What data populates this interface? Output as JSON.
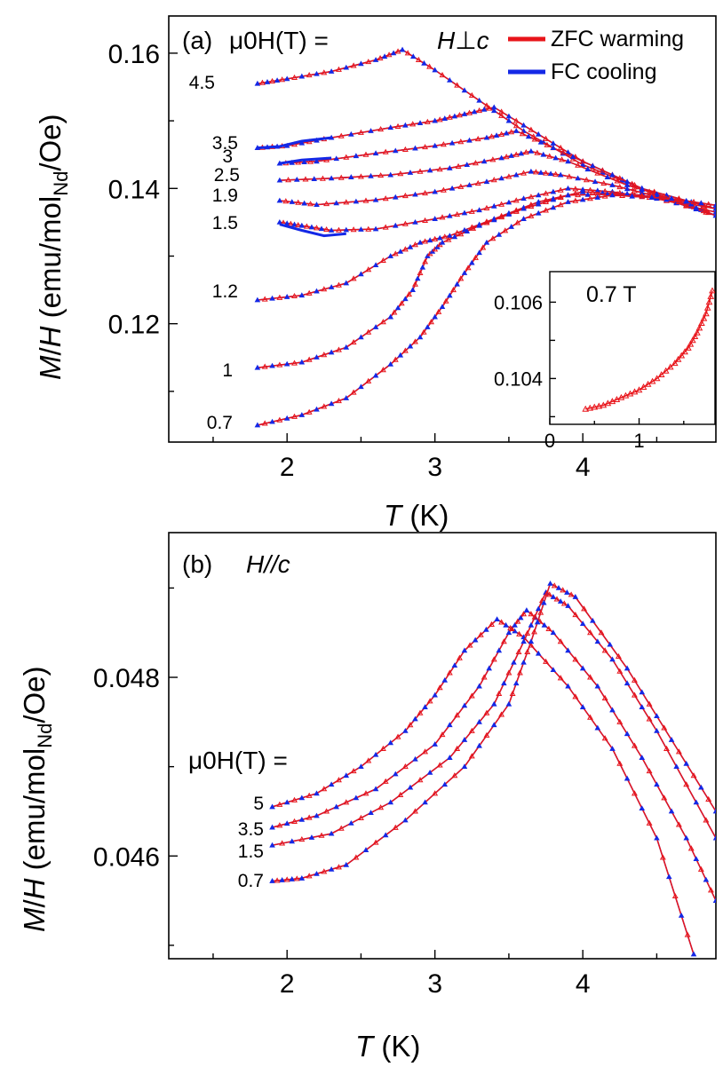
{
  "chart_data": [
    {
      "panel": "a",
      "type": "line",
      "label": "(a)",
      "field_label": "μ0H(T) =",
      "direction_label": "H⊥c",
      "xlabel": "T (K)",
      "ylabel": "M/H (emu/molNd/Oe)",
      "xlim": [
        1.2,
        4.9
      ],
      "ylim": [
        0.1025,
        0.1655
      ],
      "xticks": [
        2,
        3,
        4
      ],
      "xtick_labels": [
        "2",
        "3",
        "4"
      ],
      "yticks": [
        0.12,
        0.14,
        0.16
      ],
      "ytick_labels": [
        "0.12",
        "0.14",
        "0.16"
      ],
      "legend": [
        {
          "name": "ZFC warming",
          "color": "#e8141a"
        },
        {
          "name": "FC cooling",
          "color": "#1428e6"
        }
      ],
      "legend_position": "top-right",
      "series": [
        {
          "field": "4.5",
          "label": "4.5",
          "points": [
            [
              1.8,
              0.1555
            ],
            [
              2.0,
              0.1562
            ],
            [
              2.3,
              0.1573
            ],
            [
              2.6,
              0.159
            ],
            [
              2.78,
              0.1605
            ],
            [
              3.0,
              0.1575
            ],
            [
              3.3,
              0.153
            ],
            [
              3.6,
              0.1485
            ],
            [
              4.0,
              0.1435
            ],
            [
              4.4,
              0.14
            ],
            [
              4.9,
              0.137
            ]
          ]
        },
        {
          "field": "3.5",
          "label": "3.5",
          "points": [
            [
              1.8,
              0.146
            ],
            [
              2.0,
              0.1463
            ],
            [
              2.3,
              0.1475
            ],
            [
              2.7,
              0.149
            ],
            [
              3.0,
              0.15
            ],
            [
              3.2,
              0.151
            ],
            [
              3.4,
              0.152
            ],
            [
              3.7,
              0.148
            ],
            [
              4.0,
              0.144
            ],
            [
              4.4,
              0.14
            ],
            [
              4.9,
              0.136
            ]
          ],
          "fc_points": [
            [
              1.8,
              0.146
            ],
            [
              1.95,
              0.1462
            ],
            [
              2.1,
              0.147
            ],
            [
              2.3,
              0.1475
            ]
          ]
        },
        {
          "field": "3",
          "label": "3",
          "points": [
            [
              1.95,
              0.1437
            ],
            [
              2.2,
              0.144
            ],
            [
              2.6,
              0.1452
            ],
            [
              3.0,
              0.1463
            ],
            [
              3.35,
              0.1475
            ],
            [
              3.55,
              0.1485
            ],
            [
              3.8,
              0.146
            ],
            [
              4.2,
              0.142
            ],
            [
              4.5,
              0.139
            ],
            [
              4.9,
              0.136
            ]
          ],
          "fc_points": [
            [
              1.95,
              0.1437
            ],
            [
              2.1,
              0.1442
            ],
            [
              2.3,
              0.1445
            ]
          ]
        },
        {
          "field": "2.5",
          "label": "2.5",
          "points": [
            [
              1.95,
              0.1412
            ],
            [
              2.3,
              0.1415
            ],
            [
              2.7,
              0.142
            ],
            [
              3.1,
              0.143
            ],
            [
              3.45,
              0.1445
            ],
            [
              3.65,
              0.1455
            ],
            [
              3.9,
              0.144
            ],
            [
              4.3,
              0.1405
            ],
            [
              4.6,
              0.1385
            ],
            [
              4.9,
              0.136
            ]
          ]
        },
        {
          "field": "1.9",
          "label": "1.9",
          "points": [
            [
              1.95,
              0.1382
            ],
            [
              2.2,
              0.1376
            ],
            [
              2.6,
              0.1383
            ],
            [
              3.0,
              0.1395
            ],
            [
              3.35,
              0.141
            ],
            [
              3.65,
              0.1425
            ],
            [
              3.85,
              0.142
            ],
            [
              4.2,
              0.1405
            ],
            [
              4.5,
              0.1388
            ],
            [
              4.9,
              0.136
            ]
          ]
        },
        {
          "field": "1.5",
          "label": "1.5",
          "points": [
            [
              1.95,
              0.135
            ],
            [
              2.1,
              0.1345
            ],
            [
              2.3,
              0.1338
            ],
            [
              2.6,
              0.134
            ],
            [
              3.0,
              0.1355
            ],
            [
              3.3,
              0.1368
            ],
            [
              3.6,
              0.1385
            ],
            [
              3.9,
              0.14
            ],
            [
              4.2,
              0.1395
            ],
            [
              4.5,
              0.1385
            ],
            [
              4.9,
              0.1365
            ]
          ],
          "fc_points": [
            [
              1.95,
              0.1347
            ],
            [
              2.1,
              0.1338
            ],
            [
              2.25,
              0.133
            ],
            [
              2.4,
              0.1333
            ]
          ]
        },
        {
          "field": "1.2",
          "label": "1.2",
          "points": [
            [
              1.8,
              0.1235
            ],
            [
              2.1,
              0.1242
            ],
            [
              2.4,
              0.126
            ],
            [
              2.7,
              0.13
            ],
            [
              2.9,
              0.132
            ],
            [
              3.1,
              0.133
            ],
            [
              3.4,
              0.1355
            ],
            [
              3.7,
              0.138
            ],
            [
              4.0,
              0.1395
            ],
            [
              4.4,
              0.139
            ],
            [
              4.9,
              0.137
            ]
          ]
        },
        {
          "field": "1",
          "label": "1",
          "points": [
            [
              1.8,
              0.1135
            ],
            [
              2.1,
              0.1143
            ],
            [
              2.4,
              0.1165
            ],
            [
              2.7,
              0.121
            ],
            [
              2.85,
              0.125
            ],
            [
              2.95,
              0.13
            ],
            [
              3.05,
              0.132
            ],
            [
              3.3,
              0.1345
            ],
            [
              3.6,
              0.137
            ],
            [
              3.9,
              0.139
            ],
            [
              4.3,
              0.1392
            ],
            [
              4.9,
              0.1375
            ]
          ]
        },
        {
          "field": "0.7",
          "label": "0.7",
          "points": [
            [
              1.8,
              0.105
            ],
            [
              2.1,
              0.1065
            ],
            [
              2.4,
              0.109
            ],
            [
              2.7,
              0.114
            ],
            [
              2.9,
              0.118
            ],
            [
              3.05,
              0.1225
            ],
            [
              3.2,
              0.1275
            ],
            [
              3.35,
              0.132
            ],
            [
              3.6,
              0.1355
            ],
            [
              3.9,
              0.138
            ],
            [
              4.2,
              0.139
            ],
            [
              4.6,
              0.1385
            ],
            [
              4.9,
              0.1375
            ]
          ]
        }
      ],
      "inset": {
        "label": "0.7 T",
        "xlim": [
          0,
          1.85
        ],
        "ylim": [
          0.1028,
          0.1068
        ],
        "xticks": [
          0,
          1
        ],
        "xtick_labels": [
          "0",
          "1"
        ],
        "yticks": [
          0.104,
          0.106
        ],
        "ytick_labels": [
          "0.104",
          "0.106"
        ],
        "points": [
          [
            0.4,
            0.1032
          ],
          [
            0.6,
            0.1033
          ],
          [
            0.8,
            0.1035
          ],
          [
            1.0,
            0.1037
          ],
          [
            1.2,
            0.104
          ],
          [
            1.4,
            0.1044
          ],
          [
            1.55,
            0.1048
          ],
          [
            1.65,
            0.1052
          ],
          [
            1.75,
            0.1057
          ],
          [
            1.82,
            0.1063
          ]
        ]
      }
    },
    {
      "panel": "b",
      "type": "line",
      "label": "(b)",
      "field_label": "μ0H(T) =",
      "direction_label": "H//c",
      "xlabel": "T (K)",
      "ylabel": "M/H (emu/molNd/Oe)",
      "xlim": [
        1.2,
        4.9
      ],
      "ylim": [
        0.04485,
        0.04962
      ],
      "xticks": [
        2,
        3,
        4
      ],
      "xtick_labels": [
        "2",
        "3",
        "4"
      ],
      "yticks": [
        0.046,
        0.048
      ],
      "ytick_labels": [
        "0.046",
        "0.048"
      ],
      "series": [
        {
          "field": "5",
          "label": "5",
          "points": [
            [
              1.9,
              0.04655
            ],
            [
              2.2,
              0.0467
            ],
            [
              2.5,
              0.047
            ],
            [
              2.8,
              0.0474
            ],
            [
              3.0,
              0.0478
            ],
            [
              3.2,
              0.0483
            ],
            [
              3.42,
              0.04865
            ],
            [
              3.6,
              0.04845
            ],
            [
              3.9,
              0.0479
            ],
            [
              4.2,
              0.0472
            ],
            [
              4.5,
              0.0462
            ],
            [
              4.75,
              0.0449
            ]
          ]
        },
        {
          "field": "3.5",
          "label": "3.5",
          "points": [
            [
              1.9,
              0.04632
            ],
            [
              2.2,
              0.04645
            ],
            [
              2.6,
              0.04675
            ],
            [
              3.0,
              0.04725
            ],
            [
              3.3,
              0.0479
            ],
            [
              3.5,
              0.0485
            ],
            [
              3.62,
              0.04875
            ],
            [
              3.8,
              0.0485
            ],
            [
              4.1,
              0.0479
            ],
            [
              4.4,
              0.0471
            ],
            [
              4.7,
              0.0462
            ],
            [
              4.9,
              0.0455
            ]
          ]
        },
        {
          "field": "1.5",
          "label": "1.5",
          "points": [
            [
              1.9,
              0.04612
            ],
            [
              2.3,
              0.04625
            ],
            [
              2.7,
              0.0466
            ],
            [
              3.1,
              0.0471
            ],
            [
              3.4,
              0.0477
            ],
            [
              3.6,
              0.0484
            ],
            [
              3.75,
              0.04895
            ],
            [
              3.9,
              0.0488
            ],
            [
              4.2,
              0.0482
            ],
            [
              4.5,
              0.0474
            ],
            [
              4.9,
              0.0462
            ]
          ]
        },
        {
          "field": "0.7",
          "label": "0.7",
          "points": [
            [
              1.9,
              0.04572
            ],
            [
              2.1,
              0.04575
            ],
            [
              2.4,
              0.0459
            ],
            [
              2.8,
              0.0464
            ],
            [
              3.2,
              0.047
            ],
            [
              3.5,
              0.0477
            ],
            [
              3.65,
              0.0484
            ],
            [
              3.78,
              0.04905
            ],
            [
              3.95,
              0.0489
            ],
            [
              4.3,
              0.0481
            ],
            [
              4.6,
              0.0473
            ],
            [
              4.9,
              0.0465
            ]
          ]
        }
      ]
    }
  ]
}
